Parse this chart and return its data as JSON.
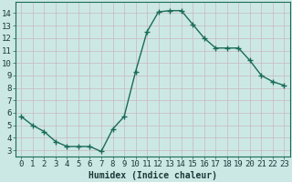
{
  "x": [
    0,
    1,
    2,
    3,
    4,
    5,
    6,
    7,
    8,
    9,
    10,
    11,
    12,
    13,
    14,
    15,
    16,
    17,
    18,
    19,
    20,
    21,
    22,
    23
  ],
  "y": [
    5.7,
    5.0,
    4.5,
    3.7,
    3.3,
    3.3,
    3.3,
    2.9,
    4.7,
    5.7,
    9.3,
    12.5,
    14.1,
    14.2,
    14.2,
    13.1,
    12.0,
    11.2,
    11.2,
    11.2,
    10.2,
    9.0,
    8.5,
    8.2
  ],
  "xlabel": "Humidex (Indice chaleur)",
  "line_color": "#1a6b5a",
  "marker": "+",
  "bg_color": "#cce8e4",
  "grid_color_h": "#c8b8c0",
  "grid_color_v": "#c8b8c0",
  "ylim": [
    2.5,
    14.9
  ],
  "xlim": [
    -0.5,
    23.5
  ],
  "yticks": [
    3,
    4,
    5,
    6,
    7,
    8,
    9,
    10,
    11,
    12,
    13,
    14
  ],
  "xticks": [
    0,
    1,
    2,
    3,
    4,
    5,
    6,
    7,
    8,
    9,
    10,
    11,
    12,
    13,
    14,
    15,
    16,
    17,
    18,
    19,
    20,
    21,
    22,
    23
  ],
  "xtick_labels": [
    "0",
    "1",
    "2",
    "3",
    "4",
    "5",
    "6",
    "7",
    "8",
    "9",
    "10",
    "11",
    "12",
    "13",
    "14",
    "15",
    "16",
    "17",
    "18",
    "19",
    "20",
    "21",
    "22",
    "23"
  ],
  "xlabel_fontsize": 7,
  "tick_fontsize": 6.5,
  "line_width": 1.0,
  "marker_size": 4,
  "spine_color": "#1a6b5a"
}
